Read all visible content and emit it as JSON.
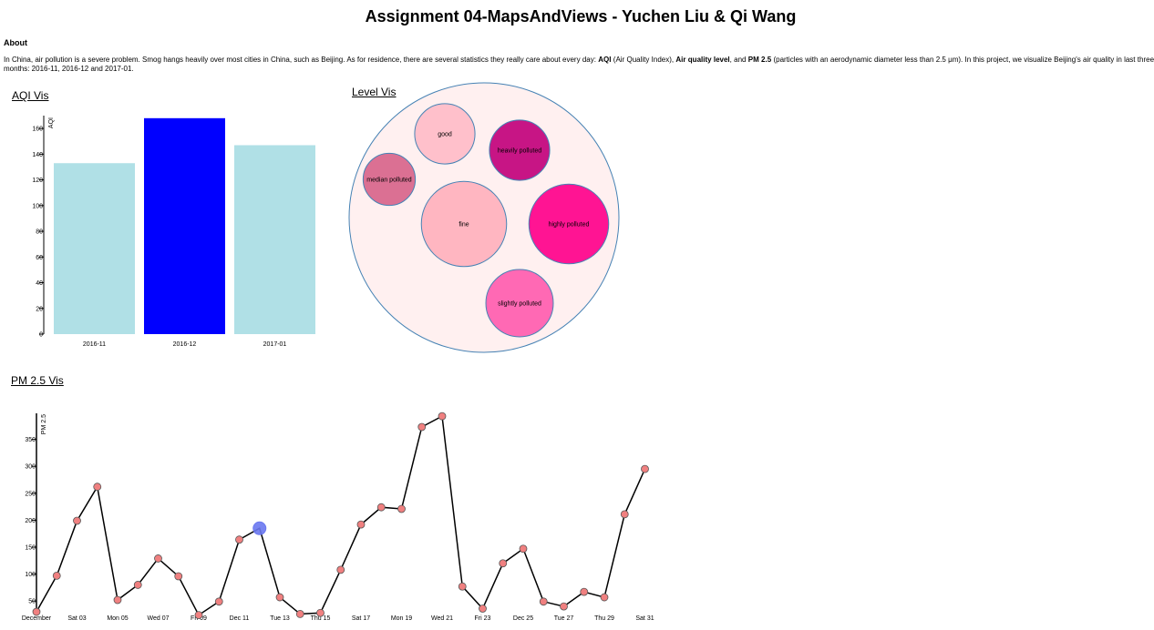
{
  "header": {
    "title": "Assignment 04-MapsAndViews - Yuchen Liu & Qi Wang",
    "about_heading": "About",
    "about": {
      "p1": "In China, air pollution is a severe problem. Smog hangs heavily over most cities in China, such as Beijing. As for residence, there are several statistics they really care about every day: ",
      "b1": "AQI",
      "p2": " (Air Quality Index), ",
      "b2": "Air quality level",
      "p3": ", and ",
      "b3": "PM 2.5",
      "p4": " (particles with an aerodynamic diameter less than 2.5 μm). In this project, we visualize Beijing's air quality in last three months: 2016-11, 2016-12 and 2017-01."
    }
  },
  "sections": {
    "aqi_title": "AQI Vis",
    "level_title": "Level Vis",
    "pm_title": "PM 2.5 Vis"
  },
  "chart_data": [
    {
      "type": "bar",
      "title": "AQI Vis",
      "ylabel": "AQI",
      "categories": [
        "2016-11",
        "2016-12",
        "2017-01"
      ],
      "values": [
        133,
        168,
        147
      ],
      "ylim": [
        0,
        170
      ],
      "yticks": [
        0,
        20,
        40,
        60,
        80,
        100,
        120,
        140,
        160
      ],
      "selected_category": "2016-12",
      "colors": {
        "bar": "#b0e0e6",
        "selected": "#0000ff"
      }
    },
    {
      "type": "bubble",
      "title": "Level Vis",
      "container_color": "#fff0f0",
      "container_stroke": "#4682b4",
      "nodes": [
        {
          "label": "good",
          "value": 6,
          "color": "#ffc0cb"
        },
        {
          "label": "heavily polluted",
          "value": 6,
          "color": "#c71585"
        },
        {
          "label": "median polluted",
          "value": 4.5,
          "color": "#db7093"
        },
        {
          "label": "fine",
          "value": 12,
          "color": "#ffb6c1"
        },
        {
          "label": "highly polluted",
          "value": 10.5,
          "color": "#ff1493"
        },
        {
          "label": "slightly polluted",
          "value": 7.5,
          "color": "#ff69b4"
        }
      ]
    },
    {
      "type": "line",
      "title": "PM 2.5 Vis",
      "ylabel": "PM 2.5",
      "x": [
        "Dec 01",
        "Dec 02",
        "Dec 03",
        "Dec 04",
        "Dec 05",
        "Dec 06",
        "Dec 07",
        "Dec 08",
        "Dec 09",
        "Dec 10",
        "Dec 11",
        "Dec 12",
        "Dec 13",
        "Dec 14",
        "Dec 15",
        "Dec 16",
        "Dec 17",
        "Dec 18",
        "Dec 19",
        "Dec 20",
        "Dec 21",
        "Dec 22",
        "Dec 23",
        "Dec 24",
        "Dec 25",
        "Dec 26",
        "Dec 27",
        "Dec 28",
        "Dec 29",
        "Dec 30",
        "Dec 31"
      ],
      "values": [
        30,
        97,
        199,
        262,
        52,
        80,
        129,
        96,
        24,
        49,
        164,
        185,
        57,
        26,
        28,
        108,
        192,
        224,
        221,
        373,
        393,
        77,
        36,
        120,
        147,
        49,
        40,
        67,
        57,
        211,
        295
      ],
      "xticks": [
        "December",
        "Sat 03",
        "Mon 05",
        "Wed 07",
        "Fri 09",
        "Dec 11",
        "Tue 13",
        "Thu 15",
        "Sat 17",
        "Mon 19",
        "Wed 21",
        "Fri 23",
        "Dec 25",
        "Tue 27",
        "Thu 29",
        "Sat 31"
      ],
      "ylim": [
        25,
        400
      ],
      "yticks": [
        50,
        100,
        150,
        200,
        250,
        300,
        350
      ],
      "highlighted_point": "Dec 12",
      "colors": {
        "line": "#000000",
        "point": "#f08080",
        "highlight": "#6a78f0"
      }
    }
  ]
}
